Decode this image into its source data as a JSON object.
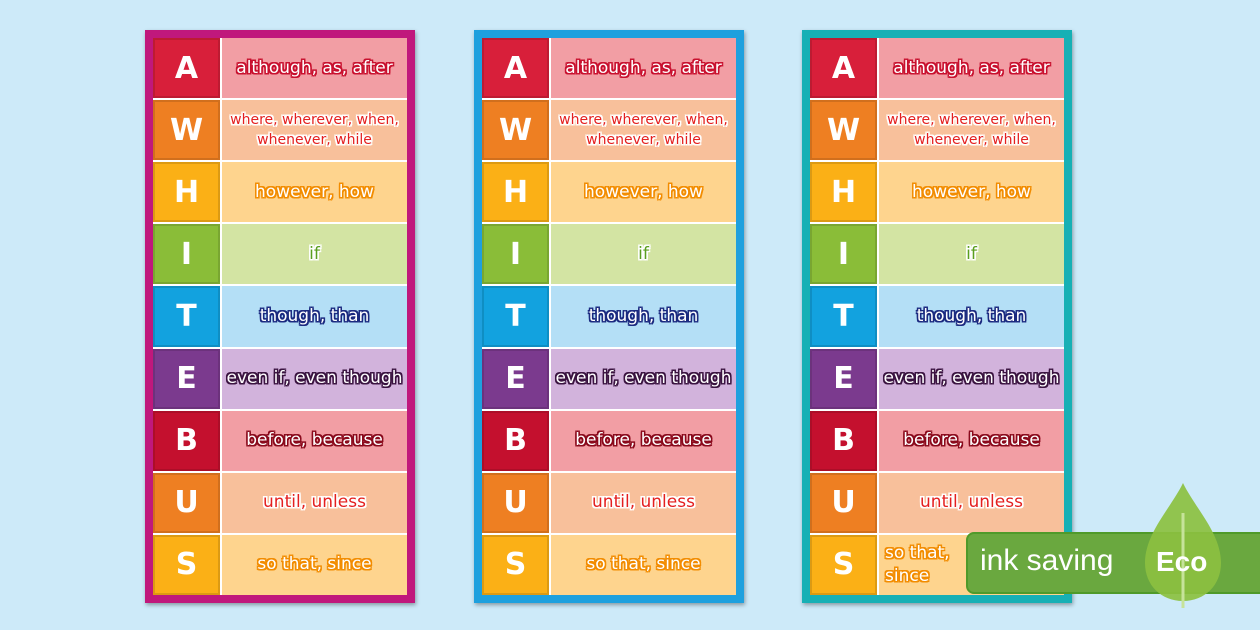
{
  "cards": [
    {
      "border": "#c0187c"
    },
    {
      "border": "#1ea0de"
    },
    {
      "border": "#17b0b5"
    }
  ],
  "rows": [
    {
      "letter": "A",
      "words": "although, as, after",
      "letter_bg": "#d81f3a",
      "bg": "#f29ea4",
      "fill": "#fff",
      "stroke": "#c8102e"
    },
    {
      "letter": "W",
      "words": "where, wherever, when, whenever, while",
      "letter_bg": "#ee7f22",
      "bg": "#f8c09b",
      "fill": "#e41f1f",
      "stroke": "#fff",
      "small": true
    },
    {
      "letter": "H",
      "words": "however, how",
      "letter_bg": "#fbb016",
      "bg": "#fed48e",
      "fill": "#fff",
      "stroke": "#f28c00"
    },
    {
      "letter": "I",
      "words": "if",
      "letter_bg": "#8abd38",
      "bg": "#d3e4a3",
      "fill": "#5a9e1e",
      "stroke": "#fff"
    },
    {
      "letter": "T",
      "words": "though, than",
      "letter_bg": "#12a2df",
      "bg": "#b4dff6",
      "fill": "#fff",
      "stroke": "#1b2a80"
    },
    {
      "letter": "E",
      "words": "even if, even though",
      "letter_bg": "#7b3a8e",
      "bg": "#d2b3dc",
      "fill": "#fff",
      "stroke": "#3a1340"
    },
    {
      "letter": "B",
      "words": "before, because",
      "letter_bg": "#c4102e",
      "bg": "#f29ea4",
      "fill": "#fff",
      "stroke": "#8a0a1c"
    },
    {
      "letter": "U",
      "words": "until, unless",
      "letter_bg": "#ee7f22",
      "bg": "#f8c09b",
      "fill": "#e41f1f",
      "stroke": "#fff"
    },
    {
      "letter": "S",
      "words": "so that, since",
      "letter_bg": "#fbb016",
      "bg": "#fed48e",
      "fill": "#fff",
      "stroke": "#f28c00"
    }
  ],
  "badge": {
    "text": "ink saving",
    "eco": "Eco",
    "color": "#6aa83f",
    "leaf": "#8cc040"
  }
}
